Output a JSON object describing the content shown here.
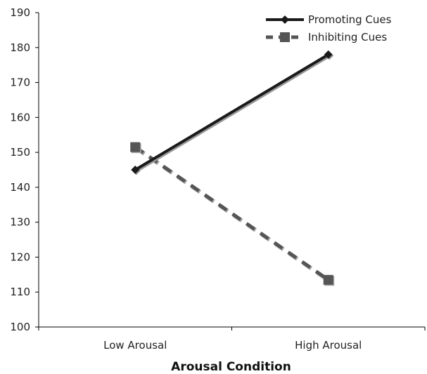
{
  "chart_data": {
    "type": "line",
    "title": "",
    "xlabel": "Arousal Condition",
    "ylabel": "",
    "categories": [
      "Low Arousal",
      "High Arousal"
    ],
    "ylim": [
      100,
      190
    ],
    "yticks": [
      100,
      110,
      120,
      130,
      140,
      150,
      160,
      170,
      180,
      190
    ],
    "grid": false,
    "legend_position": "top-right",
    "series": [
      {
        "name": "Promoting Cues",
        "values": [
          145,
          178
        ],
        "color": "#1a1a1a",
        "line_style": "solid",
        "marker": "diamond"
      },
      {
        "name": "Inhibiting Cues",
        "values": [
          151.5,
          113.5
        ],
        "color": "#555555",
        "line_style": "dashed",
        "marker": "square"
      }
    ]
  }
}
